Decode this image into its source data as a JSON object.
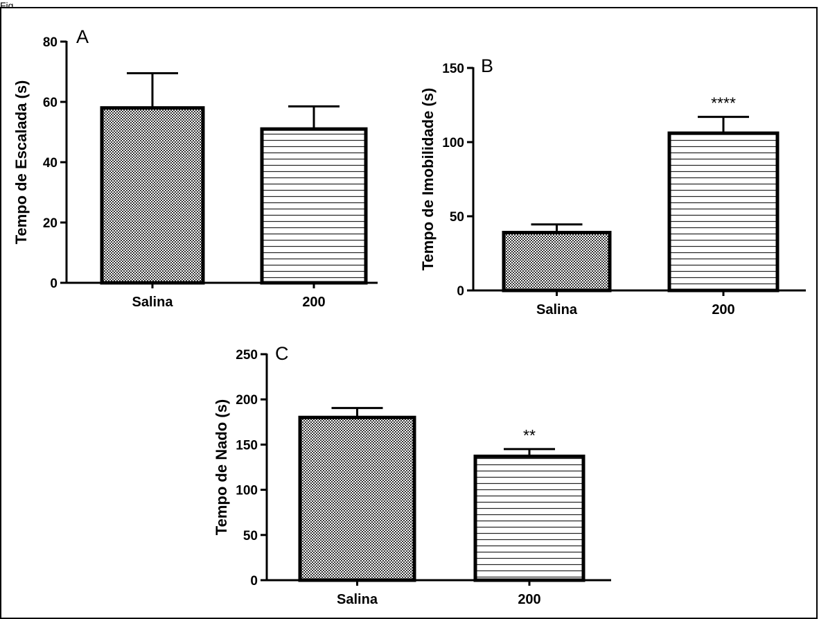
{
  "page": {
    "caption_fragment": "Fig"
  },
  "chart_data": [
    {
      "type": "bar",
      "panel_letter": "A",
      "categories": [
        "Salina",
        "200"
      ],
      "values": [
        58,
        51
      ],
      "errors": [
        11.5,
        7.5
      ],
      "fills": [
        "checker",
        "hlines"
      ],
      "significance": [
        "",
        ""
      ],
      "ylabel": "Tempo de Escalada (s)",
      "ylim": [
        0,
        80
      ],
      "yticks": [
        0,
        20,
        40,
        60,
        80
      ]
    },
    {
      "type": "bar",
      "panel_letter": "B",
      "categories": [
        "Salina",
        "200"
      ],
      "values": [
        39,
        106
      ],
      "errors": [
        5.5,
        11
      ],
      "fills": [
        "checker",
        "hlines"
      ],
      "significance": [
        "",
        "****"
      ],
      "ylabel": "Tempo de Imobilidade (s)",
      "ylim": [
        0,
        150
      ],
      "yticks": [
        0,
        50,
        100,
        150
      ]
    },
    {
      "type": "bar",
      "panel_letter": "C",
      "categories": [
        "Salina",
        "200"
      ],
      "values": [
        180,
        137
      ],
      "errors": [
        10.5,
        8
      ],
      "fills": [
        "checker",
        "hlines"
      ],
      "significance": [
        "",
        "**"
      ],
      "ylabel": "Tempo de Nado (s)",
      "ylim": [
        0,
        250
      ],
      "yticks": [
        0,
        50,
        100,
        150,
        200,
        250
      ]
    }
  ]
}
